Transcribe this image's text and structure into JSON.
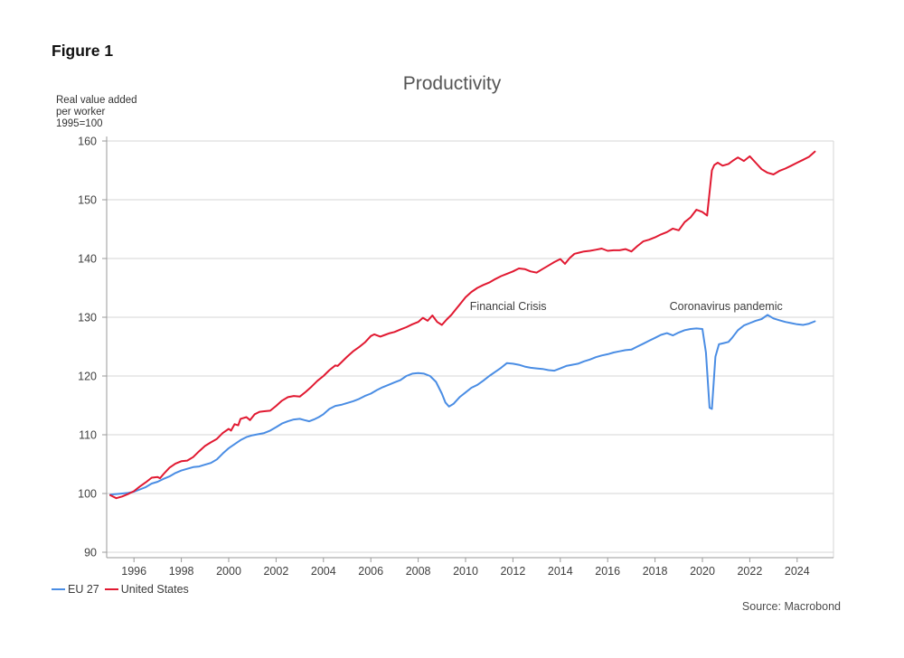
{
  "figure_label": "Figure 1",
  "source": "Source: Macrobond",
  "legend": [
    {
      "label": "EU 27",
      "color": "#4a8de4"
    },
    {
      "label": "United States",
      "color": "#e11931"
    }
  ],
  "chart_data": {
    "type": "line",
    "title": "Productivity",
    "y_axis_label_lines": [
      "Real value added",
      "per worker",
      "1995=100"
    ],
    "ylim": [
      90,
      160
    ],
    "xlim": [
      1995,
      2025
    ],
    "y_ticks": [
      90,
      100,
      110,
      120,
      130,
      140,
      150,
      160
    ],
    "x_ticks": [
      1996,
      1998,
      2000,
      2002,
      2004,
      2006,
      2008,
      2010,
      2012,
      2014,
      2016,
      2018,
      2020,
      2022,
      2024
    ],
    "grid": "horizontal",
    "legend_position": "bottom-left",
    "annotations": [
      {
        "text": "Financial Crisis",
        "year": 2011.8,
        "value": 131.2
      },
      {
        "text": "Coronavirus pandemic",
        "year": 2021.0,
        "value": 131.2
      }
    ],
    "series": [
      {
        "name": "EU 27",
        "color": "#4a8de4",
        "points": [
          [
            1995.0,
            99.8
          ],
          [
            1995.25,
            99.9
          ],
          [
            1995.5,
            100.0
          ],
          [
            1995.75,
            100.1
          ],
          [
            1996.0,
            100.3
          ],
          [
            1996.25,
            100.7
          ],
          [
            1996.5,
            101.1
          ],
          [
            1996.75,
            101.7
          ],
          [
            1997.0,
            102.0
          ],
          [
            1997.25,
            102.5
          ],
          [
            1997.5,
            102.9
          ],
          [
            1997.75,
            103.5
          ],
          [
            1998.0,
            103.9
          ],
          [
            1998.25,
            104.2
          ],
          [
            1998.5,
            104.5
          ],
          [
            1998.75,
            104.6
          ],
          [
            1999.0,
            104.9
          ],
          [
            1999.25,
            105.2
          ],
          [
            1999.5,
            105.8
          ],
          [
            1999.75,
            106.8
          ],
          [
            2000.0,
            107.7
          ],
          [
            2000.25,
            108.4
          ],
          [
            2000.5,
            109.1
          ],
          [
            2000.75,
            109.6
          ],
          [
            2001.0,
            109.9
          ],
          [
            2001.25,
            110.1
          ],
          [
            2001.5,
            110.3
          ],
          [
            2001.75,
            110.7
          ],
          [
            2002.0,
            111.3
          ],
          [
            2002.25,
            111.9
          ],
          [
            2002.5,
            112.3
          ],
          [
            2002.75,
            112.6
          ],
          [
            2003.0,
            112.7
          ],
          [
            2003.2,
            112.5
          ],
          [
            2003.4,
            112.3
          ],
          [
            2003.6,
            112.6
          ],
          [
            2003.8,
            113.0
          ],
          [
            2004.0,
            113.5
          ],
          [
            2004.25,
            114.4
          ],
          [
            2004.5,
            114.9
          ],
          [
            2004.75,
            115.1
          ],
          [
            2005.0,
            115.4
          ],
          [
            2005.25,
            115.7
          ],
          [
            2005.5,
            116.1
          ],
          [
            2005.75,
            116.6
          ],
          [
            2006.0,
            117.0
          ],
          [
            2006.25,
            117.6
          ],
          [
            2006.5,
            118.1
          ],
          [
            2006.75,
            118.5
          ],
          [
            2007.0,
            118.9
          ],
          [
            2007.25,
            119.3
          ],
          [
            2007.5,
            120.0
          ],
          [
            2007.75,
            120.4
          ],
          [
            2008.0,
            120.5
          ],
          [
            2008.25,
            120.4
          ],
          [
            2008.5,
            120.0
          ],
          [
            2008.75,
            119.0
          ],
          [
            2009.0,
            117.0
          ],
          [
            2009.15,
            115.5
          ],
          [
            2009.3,
            114.8
          ],
          [
            2009.5,
            115.3
          ],
          [
            2009.75,
            116.4
          ],
          [
            2010.0,
            117.2
          ],
          [
            2010.25,
            118.0
          ],
          [
            2010.5,
            118.5
          ],
          [
            2010.75,
            119.2
          ],
          [
            2011.0,
            120.0
          ],
          [
            2011.25,
            120.7
          ],
          [
            2011.5,
            121.4
          ],
          [
            2011.75,
            122.2
          ],
          [
            2012.0,
            122.1
          ],
          [
            2012.25,
            121.9
          ],
          [
            2012.5,
            121.6
          ],
          [
            2012.75,
            121.4
          ],
          [
            2013.0,
            121.3
          ],
          [
            2013.25,
            121.2
          ],
          [
            2013.5,
            121.0
          ],
          [
            2013.75,
            120.9
          ],
          [
            2014.0,
            121.3
          ],
          [
            2014.25,
            121.7
          ],
          [
            2014.5,
            121.9
          ],
          [
            2014.75,
            122.1
          ],
          [
            2015.0,
            122.5
          ],
          [
            2015.25,
            122.8
          ],
          [
            2015.5,
            123.2
          ],
          [
            2015.75,
            123.5
          ],
          [
            2016.0,
            123.7
          ],
          [
            2016.25,
            124.0
          ],
          [
            2016.5,
            124.2
          ],
          [
            2016.75,
            124.4
          ],
          [
            2017.0,
            124.5
          ],
          [
            2017.25,
            125.0
          ],
          [
            2017.5,
            125.5
          ],
          [
            2017.75,
            126.0
          ],
          [
            2018.0,
            126.5
          ],
          [
            2018.25,
            127.0
          ],
          [
            2018.5,
            127.3
          ],
          [
            2018.75,
            126.9
          ],
          [
            2019.0,
            127.4
          ],
          [
            2019.25,
            127.8
          ],
          [
            2019.5,
            128.0
          ],
          [
            2019.75,
            128.1
          ],
          [
            2020.0,
            128.0
          ],
          [
            2020.15,
            124.0
          ],
          [
            2020.3,
            114.6
          ],
          [
            2020.4,
            114.4
          ],
          [
            2020.55,
            123.3
          ],
          [
            2020.7,
            125.4
          ],
          [
            2020.9,
            125.6
          ],
          [
            2021.1,
            125.8
          ],
          [
            2021.25,
            126.5
          ],
          [
            2021.5,
            127.8
          ],
          [
            2021.75,
            128.6
          ],
          [
            2022.0,
            129.0
          ],
          [
            2022.25,
            129.4
          ],
          [
            2022.5,
            129.7
          ],
          [
            2022.75,
            130.4
          ],
          [
            2023.0,
            129.8
          ],
          [
            2023.25,
            129.5
          ],
          [
            2023.5,
            129.2
          ],
          [
            2023.75,
            129.0
          ],
          [
            2024.0,
            128.8
          ],
          [
            2024.25,
            128.7
          ],
          [
            2024.5,
            128.9
          ],
          [
            2024.75,
            129.3
          ]
        ]
      },
      {
        "name": "United States",
        "color": "#e11931",
        "points": [
          [
            1995.0,
            99.7
          ],
          [
            1995.25,
            99.2
          ],
          [
            1995.5,
            99.5
          ],
          [
            1995.75,
            99.9
          ],
          [
            1996.0,
            100.4
          ],
          [
            1996.25,
            101.2
          ],
          [
            1996.5,
            101.9
          ],
          [
            1996.75,
            102.7
          ],
          [
            1997.0,
            102.8
          ],
          [
            1997.1,
            102.6
          ],
          [
            1997.25,
            103.3
          ],
          [
            1997.5,
            104.4
          ],
          [
            1997.75,
            105.1
          ],
          [
            1998.0,
            105.5
          ],
          [
            1998.25,
            105.6
          ],
          [
            1998.5,
            106.2
          ],
          [
            1998.75,
            107.2
          ],
          [
            1999.0,
            108.1
          ],
          [
            1999.25,
            108.7
          ],
          [
            1999.5,
            109.3
          ],
          [
            1999.75,
            110.3
          ],
          [
            2000.0,
            111.0
          ],
          [
            2000.1,
            110.7
          ],
          [
            2000.25,
            111.8
          ],
          [
            2000.4,
            111.6
          ],
          [
            2000.5,
            112.7
          ],
          [
            2000.75,
            113.0
          ],
          [
            2000.9,
            112.5
          ],
          [
            2001.1,
            113.5
          ],
          [
            2001.3,
            113.9
          ],
          [
            2001.5,
            114.0
          ],
          [
            2001.75,
            114.1
          ],
          [
            2002.0,
            114.9
          ],
          [
            2002.25,
            115.8
          ],
          [
            2002.5,
            116.4
          ],
          [
            2002.75,
            116.6
          ],
          [
            2003.0,
            116.5
          ],
          [
            2003.25,
            117.3
          ],
          [
            2003.5,
            118.2
          ],
          [
            2003.75,
            119.2
          ],
          [
            2004.0,
            120.0
          ],
          [
            2004.25,
            121.0
          ],
          [
            2004.5,
            121.8
          ],
          [
            2004.6,
            121.7
          ],
          [
            2004.75,
            122.3
          ],
          [
            2005.0,
            123.3
          ],
          [
            2005.25,
            124.2
          ],
          [
            2005.5,
            124.9
          ],
          [
            2005.75,
            125.7
          ],
          [
            2006.0,
            126.8
          ],
          [
            2006.15,
            127.1
          ],
          [
            2006.4,
            126.7
          ],
          [
            2006.6,
            127.0
          ],
          [
            2006.8,
            127.3
          ],
          [
            2007.0,
            127.5
          ],
          [
            2007.25,
            127.9
          ],
          [
            2007.5,
            128.3
          ],
          [
            2007.75,
            128.8
          ],
          [
            2008.0,
            129.2
          ],
          [
            2008.2,
            129.9
          ],
          [
            2008.4,
            129.4
          ],
          [
            2008.6,
            130.3
          ],
          [
            2008.8,
            129.2
          ],
          [
            2009.0,
            128.7
          ],
          [
            2009.2,
            129.6
          ],
          [
            2009.4,
            130.4
          ],
          [
            2009.6,
            131.4
          ],
          [
            2009.8,
            132.4
          ],
          [
            2010.0,
            133.4
          ],
          [
            2010.25,
            134.3
          ],
          [
            2010.5,
            135.0
          ],
          [
            2010.75,
            135.5
          ],
          [
            2011.0,
            135.9
          ],
          [
            2011.25,
            136.5
          ],
          [
            2011.5,
            137.0
          ],
          [
            2011.75,
            137.4
          ],
          [
            2012.0,
            137.8
          ],
          [
            2012.25,
            138.3
          ],
          [
            2012.5,
            138.2
          ],
          [
            2012.75,
            137.8
          ],
          [
            2013.0,
            137.6
          ],
          [
            2013.25,
            138.2
          ],
          [
            2013.5,
            138.8
          ],
          [
            2013.75,
            139.4
          ],
          [
            2014.0,
            139.9
          ],
          [
            2014.2,
            139.1
          ],
          [
            2014.4,
            140.1
          ],
          [
            2014.6,
            140.8
          ],
          [
            2014.8,
            141.0
          ],
          [
            2015.0,
            141.2
          ],
          [
            2015.25,
            141.3
          ],
          [
            2015.5,
            141.5
          ],
          [
            2015.75,
            141.7
          ],
          [
            2016.0,
            141.3
          ],
          [
            2016.25,
            141.4
          ],
          [
            2016.5,
            141.4
          ],
          [
            2016.75,
            141.6
          ],
          [
            2017.0,
            141.2
          ],
          [
            2017.25,
            142.1
          ],
          [
            2017.5,
            142.9
          ],
          [
            2017.75,
            143.2
          ],
          [
            2018.0,
            143.6
          ],
          [
            2018.25,
            144.1
          ],
          [
            2018.5,
            144.5
          ],
          [
            2018.75,
            145.1
          ],
          [
            2019.0,
            144.8
          ],
          [
            2019.25,
            146.2
          ],
          [
            2019.5,
            147.0
          ],
          [
            2019.75,
            148.3
          ],
          [
            2020.0,
            147.9
          ],
          [
            2020.2,
            147.3
          ],
          [
            2020.4,
            155.0
          ],
          [
            2020.5,
            155.9
          ],
          [
            2020.65,
            156.3
          ],
          [
            2020.85,
            155.8
          ],
          [
            2021.1,
            156.1
          ],
          [
            2021.3,
            156.7
          ],
          [
            2021.5,
            157.2
          ],
          [
            2021.75,
            156.6
          ],
          [
            2022.0,
            157.4
          ],
          [
            2022.25,
            156.3
          ],
          [
            2022.5,
            155.2
          ],
          [
            2022.75,
            154.6
          ],
          [
            2023.0,
            154.3
          ],
          [
            2023.25,
            154.9
          ],
          [
            2023.5,
            155.3
          ],
          [
            2023.75,
            155.8
          ],
          [
            2024.0,
            156.3
          ],
          [
            2024.25,
            156.8
          ],
          [
            2024.5,
            157.3
          ],
          [
            2024.75,
            158.2
          ]
        ]
      }
    ]
  }
}
